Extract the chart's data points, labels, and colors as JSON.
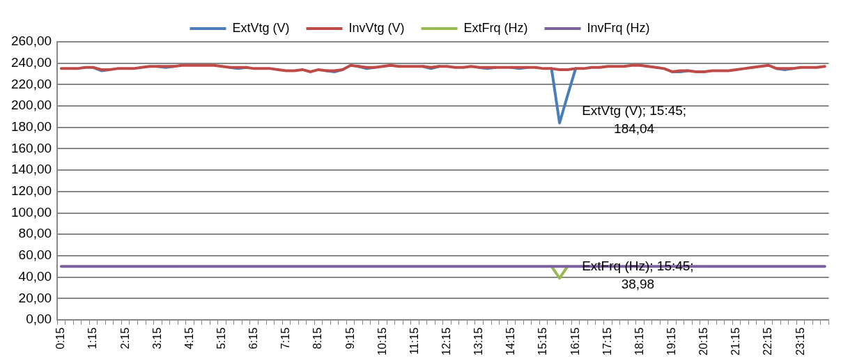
{
  "chart_data": {
    "type": "line",
    "categories": [
      "0:15",
      null,
      null,
      null,
      "1:15",
      null,
      null,
      null,
      "2:15",
      null,
      null,
      null,
      "3:15",
      null,
      null,
      null,
      "4:15",
      null,
      null,
      null,
      "5:15",
      null,
      null,
      null,
      "6:15",
      null,
      null,
      null,
      "7:15",
      null,
      null,
      null,
      "8:15",
      null,
      null,
      null,
      "9:15",
      null,
      null,
      null,
      "10:15",
      null,
      null,
      null,
      "11:15",
      null,
      null,
      null,
      "12:15",
      null,
      null,
      null,
      "13:15",
      null,
      null,
      null,
      "14:15",
      null,
      null,
      null,
      "15:15",
      null,
      null,
      null,
      "16:15",
      null,
      null,
      null,
      "17:15",
      null,
      null,
      null,
      "18:15",
      null,
      null,
      null,
      "19:15",
      null,
      null,
      null,
      "20:15",
      null,
      null,
      null,
      "21:15",
      null,
      null,
      null,
      "22:15",
      null,
      null,
      null,
      "23:15",
      null,
      null,
      null
    ],
    "series": [
      {
        "name": "ExtVtg (V)",
        "color": "#4a7ebb",
        "values": [
          null,
          null,
          null,
          null,
          236,
          233,
          234,
          null,
          null,
          null,
          null,
          null,
          237,
          236,
          237,
          null,
          null,
          null,
          null,
          null,
          null,
          236,
          235,
          236,
          null,
          null,
          null,
          null,
          null,
          null,
          null,
          null,
          null,
          233,
          232,
          234,
          null,
          237,
          235,
          236,
          null,
          null,
          null,
          null,
          null,
          237,
          235,
          237,
          null,
          null,
          null,
          null,
          236,
          235,
          236,
          null,
          236,
          235,
          236,
          null,
          null,
          235,
          184.04,
          210,
          235,
          null,
          null,
          null,
          null,
          null,
          null,
          null,
          null,
          null,
          null,
          null,
          232,
          232,
          233,
          null,
          null,
          null,
          null,
          null,
          null,
          null,
          null,
          null,
          null,
          235,
          234,
          235,
          null,
          null,
          null,
          null
        ]
      },
      {
        "name": "InvVtg (V)",
        "color": "#be4b48",
        "values": [
          235,
          235,
          235,
          236,
          236,
          234,
          234,
          235,
          235,
          235,
          236,
          237,
          237,
          237,
          237,
          238,
          238,
          238,
          238,
          238,
          237,
          236,
          236,
          236,
          235,
          235,
          235,
          234,
          233,
          233,
          234,
          232,
          234,
          233,
          233,
          234,
          238,
          237,
          236,
          236,
          237,
          238,
          237,
          237,
          237,
          237,
          236,
          237,
          237,
          236,
          236,
          237,
          236,
          236,
          236,
          236,
          236,
          236,
          236,
          236,
          235,
          235,
          234,
          234,
          235,
          235,
          236,
          236,
          237,
          237,
          237,
          238,
          238,
          237,
          236,
          235,
          232,
          233,
          233,
          232,
          232,
          233,
          233,
          233,
          234,
          235,
          236,
          237,
          238,
          235,
          235,
          235,
          236,
          236,
          236,
          237
        ]
      },
      {
        "name": "ExtFrq (Hz)",
        "color": "#98b954",
        "values": [
          null,
          null,
          null,
          null,
          null,
          null,
          null,
          null,
          null,
          null,
          null,
          null,
          null,
          null,
          null,
          null,
          null,
          null,
          null,
          null,
          null,
          null,
          null,
          null,
          null,
          null,
          null,
          null,
          null,
          null,
          null,
          null,
          null,
          null,
          null,
          null,
          null,
          null,
          null,
          null,
          null,
          null,
          null,
          null,
          null,
          null,
          null,
          null,
          null,
          null,
          null,
          null,
          null,
          null,
          null,
          null,
          null,
          null,
          null,
          null,
          null,
          50,
          38.98,
          50,
          null,
          null,
          null,
          null,
          null,
          null,
          null,
          null,
          null,
          null,
          null,
          null,
          null,
          null,
          null,
          null,
          null,
          null,
          null,
          null,
          null,
          null,
          null,
          null,
          null,
          null,
          null,
          null,
          null,
          null,
          null,
          null
        ]
      },
      {
        "name": "InvFrq (Hz)",
        "color": "#7d60a0",
        "values": [
          50,
          50,
          50,
          50,
          50,
          50,
          50,
          50,
          50,
          50,
          50,
          50,
          50,
          50,
          50,
          50,
          50,
          50,
          50,
          50,
          50,
          50,
          50,
          50,
          50,
          50,
          50,
          50,
          50,
          50,
          50,
          50,
          50,
          50,
          50,
          50,
          50,
          50,
          50,
          50,
          50,
          50,
          50,
          50,
          50,
          50,
          50,
          50,
          50,
          50,
          50,
          50,
          50,
          50,
          50,
          50,
          50,
          50,
          50,
          50,
          50,
          50,
          50,
          50,
          50,
          50,
          50,
          50,
          50,
          50,
          50,
          50,
          50,
          50,
          50,
          50,
          50,
          50,
          50,
          50,
          50,
          50,
          50,
          50,
          50,
          50,
          50,
          50,
          50,
          50,
          50,
          50,
          50,
          50,
          50,
          50
        ]
      }
    ],
    "ylim": [
      0,
      260
    ],
    "yticks": [
      {
        "value": 0,
        "label": "0,00"
      },
      {
        "value": 20,
        "label": "20,00"
      },
      {
        "value": 40,
        "label": "40,00"
      },
      {
        "value": 60,
        "label": "60,00"
      },
      {
        "value": 80,
        "label": "80,00"
      },
      {
        "value": 100,
        "label": "100,00"
      },
      {
        "value": 120,
        "label": "120,00"
      },
      {
        "value": 140,
        "label": "140,00"
      },
      {
        "value": 160,
        "label": "160,00"
      },
      {
        "value": 180,
        "label": "180,00"
      },
      {
        "value": 200,
        "label": "200,00"
      },
      {
        "value": 220,
        "label": "220,00"
      },
      {
        "value": 240,
        "label": "240,00"
      },
      {
        "value": 260,
        "label": "260,00"
      }
    ],
    "grid": "y",
    "legend": "top",
    "marker": "none",
    "line_style": "solid",
    "annotations": [
      "ExtVtg (V); 15:45; 184,04",
      "ExtFrq (Hz); 15:45; 38,98"
    ]
  }
}
